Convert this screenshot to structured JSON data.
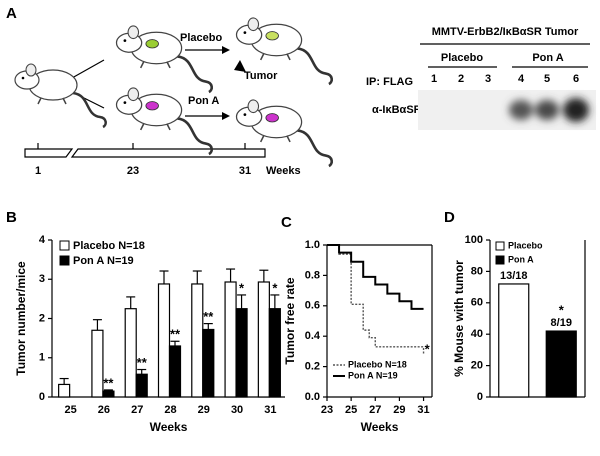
{
  "diagram": {
    "label": "A",
    "arms": [
      "Placebo",
      "Pon A"
    ],
    "tumor": "Tumor",
    "timeline": {
      "ticks": [
        "1",
        "23",
        "31"
      ],
      "unit": "Weeks"
    },
    "blot": {
      "title": "MMTV-ErbB2/IκBαSR Tumor",
      "groups": [
        "Placebo",
        "Pon A"
      ],
      "row_label": "IP: FLAG",
      "lanes": [
        "1",
        "2",
        "3",
        "4",
        "5",
        "6"
      ],
      "probe": "α-IκBαSR"
    }
  },
  "chart_data": [
    {
      "panel": "B",
      "type": "bar",
      "ylabel": "Tumor number/mice",
      "xlabel": "Weeks",
      "categories": [
        "25",
        "26",
        "27",
        "28",
        "29",
        "30",
        "31"
      ],
      "ylim": [
        0,
        4
      ],
      "yticks": [
        0,
        1,
        2,
        3,
        4
      ],
      "legend": "upper left",
      "series": [
        {
          "name": "Placebo N=18",
          "color": "#ffffff",
          "values": [
            0.32,
            1.7,
            2.25,
            2.88,
            2.88,
            2.93,
            2.93
          ],
          "errors": [
            0.15,
            0.27,
            0.3,
            0.33,
            0.33,
            0.33,
            0.3
          ]
        },
        {
          "name": "Pon A N=19",
          "color": "#000000",
          "values": [
            null,
            0.15,
            0.58,
            1.3,
            1.72,
            2.25,
            2.25
          ],
          "errors": [
            null,
            0.03,
            0.12,
            0.12,
            0.15,
            0.35,
            0.35
          ],
          "annotations": [
            null,
            "**",
            "**",
            "**",
            "**",
            "*",
            "*"
          ]
        }
      ]
    },
    {
      "panel": "C",
      "type": "line",
      "ylabel": "Tumor free rate",
      "xlabel": "Weeks",
      "xlim": [
        23,
        31.7
      ],
      "xticks": [
        23,
        25,
        27,
        29,
        31
      ],
      "ylim": [
        0,
        1
      ],
      "yticks": [
        {
          "value": 0,
          "label": "0.0"
        },
        0.2,
        0.4,
        0.6,
        0.8,
        {
          "value": 1,
          "label": "1.0"
        }
      ],
      "legend": "lower left",
      "annotation": {
        "text": "*",
        "x": 31.3,
        "y": 0.31
      },
      "series": [
        {
          "name": "Placebo N=18",
          "color": "#555555",
          "dashed": true,
          "x": [
            23,
            24,
            24,
            25,
            25,
            26,
            26,
            26.5,
            26.5,
            27,
            27,
            31,
            31
          ],
          "values": [
            1,
            1,
            0.94,
            0.94,
            0.61,
            0.61,
            0.44,
            0.44,
            0.39,
            0.39,
            0.33,
            0.33,
            0.28
          ]
        },
        {
          "name": "Pon A N=19",
          "color": "#000000",
          "dashed": false,
          "x": [
            23,
            24,
            24,
            25,
            25,
            26,
            26,
            27,
            27,
            28,
            28,
            29,
            29,
            30,
            30,
            31
          ],
          "values": [
            1,
            1,
            0.95,
            0.95,
            0.89,
            0.89,
            0.79,
            0.79,
            0.74,
            0.74,
            0.68,
            0.68,
            0.63,
            0.63,
            0.58,
            0.58
          ]
        }
      ]
    },
    {
      "panel": "D",
      "type": "bar",
      "ylabel": "% Mouse with tumor",
      "categories": [
        null,
        null
      ],
      "ylim": [
        0,
        100
      ],
      "yticks": [
        0,
        20,
        40,
        60,
        80,
        100
      ],
      "legend": "upper left",
      "legend_labels": [
        "Placebo",
        "Pon A"
      ],
      "colors": [
        "#ffffff",
        "#000000"
      ],
      "values": [
        72,
        42
      ],
      "value_labels": [
        "13/18",
        "8/19"
      ],
      "annotations": [
        null,
        "*"
      ]
    }
  ]
}
